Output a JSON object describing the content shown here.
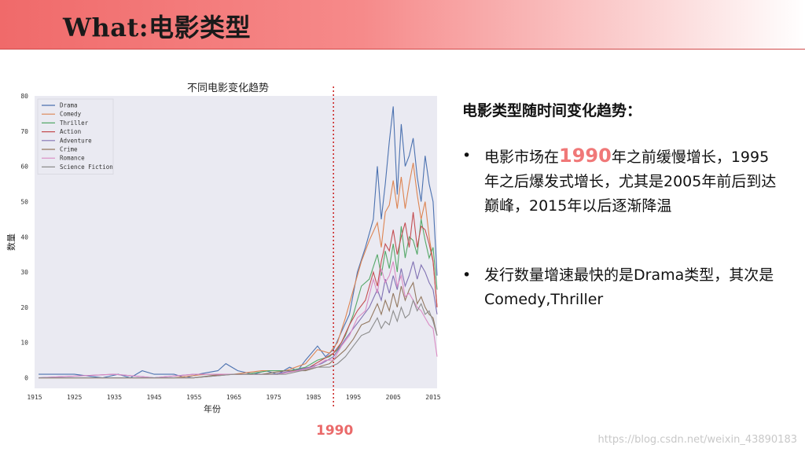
{
  "header": {
    "title": "What:电影类型"
  },
  "marker": {
    "label": "1990",
    "year": 1990,
    "color": "#cc2a2a"
  },
  "side": {
    "heading": "电影类型随时间变化趋势：",
    "bullets": [
      {
        "pre": "电影市场在",
        "highlight": "1990",
        "post": "年之前缓慢增长，1995年之后爆发式增长，尤其是2005年前后到达巅峰，2015年以后逐渐降温"
      },
      {
        "pre": "发行数量增速最快的是Drama类型，其次是Comedy,Thriller",
        "highlight": "",
        "post": ""
      }
    ],
    "bullet_symbol": "•"
  },
  "watermark": "https://blog.csdn.net/weixin_43890183",
  "chart_data": {
    "type": "line",
    "title": "不同电影变化趋势",
    "xlabel": "年份",
    "ylabel": "数量",
    "xlim": [
      1915,
      2016
    ],
    "ylim": [
      -3,
      80
    ],
    "xticks": [
      1915,
      1925,
      1935,
      1945,
      1955,
      1965,
      1975,
      1985,
      1995,
      2005,
      2015
    ],
    "yticks": [
      0,
      10,
      20,
      30,
      40,
      50,
      60,
      70,
      80
    ],
    "grid": false,
    "legend_position": "top-left",
    "series": [
      {
        "name": "Drama",
        "color": "#4c72b0",
        "points": [
          [
            1916,
            1
          ],
          [
            1925,
            1
          ],
          [
            1932,
            0
          ],
          [
            1936,
            1
          ],
          [
            1939,
            0
          ],
          [
            1942,
            2
          ],
          [
            1945,
            1
          ],
          [
            1950,
            1
          ],
          [
            1953,
            0
          ],
          [
            1956,
            1
          ],
          [
            1961,
            2
          ],
          [
            1963,
            4
          ],
          [
            1966,
            2
          ],
          [
            1970,
            1
          ],
          [
            1973,
            2
          ],
          [
            1976,
            1
          ],
          [
            1979,
            3
          ],
          [
            1981,
            2
          ],
          [
            1983,
            5
          ],
          [
            1986,
            9
          ],
          [
            1988,
            6
          ],
          [
            1990,
            8
          ],
          [
            1992,
            13
          ],
          [
            1994,
            18
          ],
          [
            1996,
            30
          ],
          [
            1998,
            37
          ],
          [
            2000,
            45
          ],
          [
            2001,
            60
          ],
          [
            2002,
            45
          ],
          [
            2003,
            55
          ],
          [
            2004,
            67
          ],
          [
            2005,
            77
          ],
          [
            2006,
            52
          ],
          [
            2007,
            72
          ],
          [
            2008,
            60
          ],
          [
            2009,
            63
          ],
          [
            2010,
            68
          ],
          [
            2011,
            57
          ],
          [
            2012,
            50
          ],
          [
            2013,
            63
          ],
          [
            2014,
            55
          ],
          [
            2015,
            50
          ],
          [
            2016,
            29
          ]
        ]
      },
      {
        "name": "Comedy",
        "color": "#dd8452",
        "points": [
          [
            1916,
            0
          ],
          [
            1930,
            0
          ],
          [
            1940,
            0
          ],
          [
            1950,
            0
          ],
          [
            1958,
            1
          ],
          [
            1965,
            1
          ],
          [
            1972,
            2
          ],
          [
            1978,
            2
          ],
          [
            1983,
            4
          ],
          [
            1986,
            8
          ],
          [
            1989,
            7
          ],
          [
            1991,
            10
          ],
          [
            1993,
            17
          ],
          [
            1995,
            25
          ],
          [
            1997,
            33
          ],
          [
            1999,
            39
          ],
          [
            2001,
            44
          ],
          [
            2002,
            37
          ],
          [
            2003,
            47
          ],
          [
            2004,
            49
          ],
          [
            2005,
            56
          ],
          [
            2006,
            48
          ],
          [
            2007,
            57
          ],
          [
            2008,
            48
          ],
          [
            2009,
            55
          ],
          [
            2010,
            61
          ],
          [
            2011,
            52
          ],
          [
            2012,
            45
          ],
          [
            2013,
            50
          ],
          [
            2014,
            40
          ],
          [
            2015,
            33
          ],
          [
            2016,
            20
          ]
        ]
      },
      {
        "name": "Thriller",
        "color": "#55a868",
        "points": [
          [
            1916,
            0
          ],
          [
            1940,
            0
          ],
          [
            1955,
            0
          ],
          [
            1962,
            1
          ],
          [
            1968,
            1
          ],
          [
            1974,
            2
          ],
          [
            1979,
            2
          ],
          [
            1983,
            3
          ],
          [
            1986,
            5
          ],
          [
            1989,
            6
          ],
          [
            1991,
            8
          ],
          [
            1993,
            12
          ],
          [
            1995,
            18
          ],
          [
            1997,
            26
          ],
          [
            1999,
            28
          ],
          [
            2001,
            35
          ],
          [
            2002,
            29
          ],
          [
            2003,
            36
          ],
          [
            2004,
            31
          ],
          [
            2005,
            38
          ],
          [
            2006,
            30
          ],
          [
            2007,
            43
          ],
          [
            2008,
            34
          ],
          [
            2009,
            40
          ],
          [
            2010,
            39
          ],
          [
            2011,
            35
          ],
          [
            2012,
            45
          ],
          [
            2013,
            39
          ],
          [
            2014,
            34
          ],
          [
            2015,
            37
          ],
          [
            2016,
            25
          ]
        ]
      },
      {
        "name": "Action",
        "color": "#c44e52",
        "points": [
          [
            1916,
            0
          ],
          [
            1940,
            0
          ],
          [
            1955,
            0
          ],
          [
            1963,
            1
          ],
          [
            1970,
            1
          ],
          [
            1976,
            1
          ],
          [
            1980,
            2
          ],
          [
            1984,
            3
          ],
          [
            1987,
            5
          ],
          [
            1990,
            7
          ],
          [
            1992,
            10
          ],
          [
            1994,
            15
          ],
          [
            1996,
            19
          ],
          [
            1998,
            22
          ],
          [
            2000,
            30
          ],
          [
            2001,
            26
          ],
          [
            2002,
            33
          ],
          [
            2003,
            38
          ],
          [
            2004,
            36
          ],
          [
            2005,
            42
          ],
          [
            2006,
            35
          ],
          [
            2007,
            40
          ],
          [
            2008,
            44
          ],
          [
            2009,
            37
          ],
          [
            2010,
            47
          ],
          [
            2011,
            37
          ],
          [
            2012,
            43
          ],
          [
            2013,
            42
          ],
          [
            2014,
            38
          ],
          [
            2015,
            33
          ],
          [
            2016,
            20
          ]
        ]
      },
      {
        "name": "Adventure",
        "color": "#8172b3",
        "points": [
          [
            1916,
            0
          ],
          [
            1935,
            1
          ],
          [
            1945,
            0
          ],
          [
            1955,
            1
          ],
          [
            1962,
            1
          ],
          [
            1968,
            1
          ],
          [
            1975,
            1
          ],
          [
            1980,
            2
          ],
          [
            1984,
            3
          ],
          [
            1987,
            4
          ],
          [
            1990,
            6
          ],
          [
            1993,
            11
          ],
          [
            1995,
            14
          ],
          [
            1997,
            17
          ],
          [
            1999,
            20
          ],
          [
            2001,
            25
          ],
          [
            2002,
            22
          ],
          [
            2003,
            28
          ],
          [
            2004,
            24
          ],
          [
            2005,
            29
          ],
          [
            2006,
            25
          ],
          [
            2007,
            31
          ],
          [
            2008,
            26
          ],
          [
            2009,
            29
          ],
          [
            2010,
            33
          ],
          [
            2011,
            28
          ],
          [
            2012,
            32
          ],
          [
            2013,
            30
          ],
          [
            2014,
            27
          ],
          [
            2015,
            25
          ],
          [
            2016,
            18
          ]
        ]
      },
      {
        "name": "Crime",
        "color": "#937860",
        "points": [
          [
            1916,
            0
          ],
          [
            1940,
            0
          ],
          [
            1955,
            0
          ],
          [
            1965,
            1
          ],
          [
            1972,
            1
          ],
          [
            1978,
            2
          ],
          [
            1983,
            2
          ],
          [
            1986,
            3
          ],
          [
            1989,
            4
          ],
          [
            1991,
            6
          ],
          [
            1993,
            8
          ],
          [
            1995,
            11
          ],
          [
            1997,
            15
          ],
          [
            1999,
            16
          ],
          [
            2001,
            21
          ],
          [
            2002,
            18
          ],
          [
            2003,
            22
          ],
          [
            2004,
            19
          ],
          [
            2005,
            24
          ],
          [
            2006,
            20
          ],
          [
            2007,
            26
          ],
          [
            2008,
            22
          ],
          [
            2009,
            25
          ],
          [
            2010,
            27
          ],
          [
            2011,
            21
          ],
          [
            2012,
            23
          ],
          [
            2013,
            20
          ],
          [
            2014,
            18
          ],
          [
            2015,
            17
          ],
          [
            2016,
            12
          ]
        ]
      },
      {
        "name": "Romance",
        "color": "#da8bc3",
        "points": [
          [
            1916,
            0
          ],
          [
            1935,
            1
          ],
          [
            1945,
            0
          ],
          [
            1955,
            1
          ],
          [
            1963,
            1
          ],
          [
            1970,
            1
          ],
          [
            1976,
            1
          ],
          [
            1981,
            2
          ],
          [
            1985,
            3
          ],
          [
            1988,
            5
          ],
          [
            1990,
            5
          ],
          [
            1992,
            9
          ],
          [
            1994,
            12
          ],
          [
            1996,
            17
          ],
          [
            1998,
            19
          ],
          [
            2000,
            28
          ],
          [
            2001,
            24
          ],
          [
            2002,
            31
          ],
          [
            2003,
            27
          ],
          [
            2004,
            29
          ],
          [
            2005,
            33
          ],
          [
            2006,
            26
          ],
          [
            2007,
            29
          ],
          [
            2008,
            23
          ],
          [
            2009,
            24
          ],
          [
            2010,
            22
          ],
          [
            2011,
            20
          ],
          [
            2012,
            19
          ],
          [
            2013,
            17
          ],
          [
            2014,
            15
          ],
          [
            2015,
            14
          ],
          [
            2016,
            6
          ]
        ]
      },
      {
        "name": "Science Fiction",
        "color": "#8c8c8c",
        "points": [
          [
            1916,
            0
          ],
          [
            1940,
            0
          ],
          [
            1955,
            0
          ],
          [
            1965,
            1
          ],
          [
            1972,
            1
          ],
          [
            1978,
            1
          ],
          [
            1982,
            2
          ],
          [
            1986,
            3
          ],
          [
            1989,
            3
          ],
          [
            1991,
            4
          ],
          [
            1993,
            6
          ],
          [
            1995,
            9
          ],
          [
            1997,
            12
          ],
          [
            1999,
            13
          ],
          [
            2001,
            17
          ],
          [
            2002,
            14
          ],
          [
            2003,
            16
          ],
          [
            2004,
            15
          ],
          [
            2005,
            19
          ],
          [
            2006,
            16
          ],
          [
            2007,
            20
          ],
          [
            2008,
            17
          ],
          [
            2009,
            18
          ],
          [
            2010,
            22
          ],
          [
            2011,
            19
          ],
          [
            2012,
            21
          ],
          [
            2013,
            18
          ],
          [
            2014,
            19
          ],
          [
            2015,
            16
          ],
          [
            2016,
            12
          ]
        ]
      }
    ]
  }
}
